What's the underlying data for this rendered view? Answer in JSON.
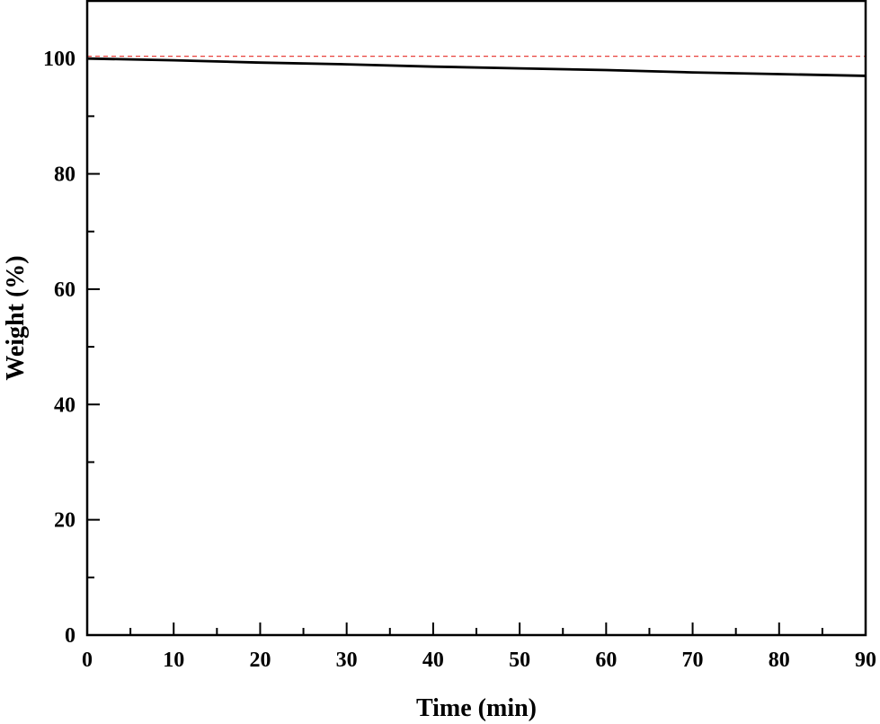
{
  "chart_data": {
    "type": "line",
    "title": "",
    "xlabel": "Time (min)",
    "ylabel": "Weight (%)",
    "xlim": [
      0,
      90
    ],
    "ylim": [
      0,
      110
    ],
    "x_ticks": [
      0,
      10,
      20,
      30,
      40,
      50,
      60,
      70,
      80,
      90
    ],
    "x_tick_labels": [
      "0",
      "10",
      "20",
      "30",
      "40",
      "50",
      "60",
      "70",
      "80",
      "90"
    ],
    "y_ticks": [
      0,
      20,
      40,
      60,
      80,
      100
    ],
    "y_tick_labels": [
      "0",
      "20",
      "40",
      "60",
      "80",
      "100"
    ],
    "grid": false,
    "legend": "none",
    "series": [
      {
        "style": "solid",
        "color": "#000000",
        "x": [
          0,
          10,
          20,
          30,
          40,
          50,
          60,
          70,
          80,
          90
        ],
        "y": [
          100.0,
          99.7,
          99.3,
          99.0,
          98.6,
          98.3,
          98.0,
          97.6,
          97.3,
          97.0
        ]
      },
      {
        "style": "dashed",
        "color": "#e8413c",
        "x": [
          0,
          90
        ],
        "y": [
          100.4,
          100.4
        ]
      }
    ]
  }
}
